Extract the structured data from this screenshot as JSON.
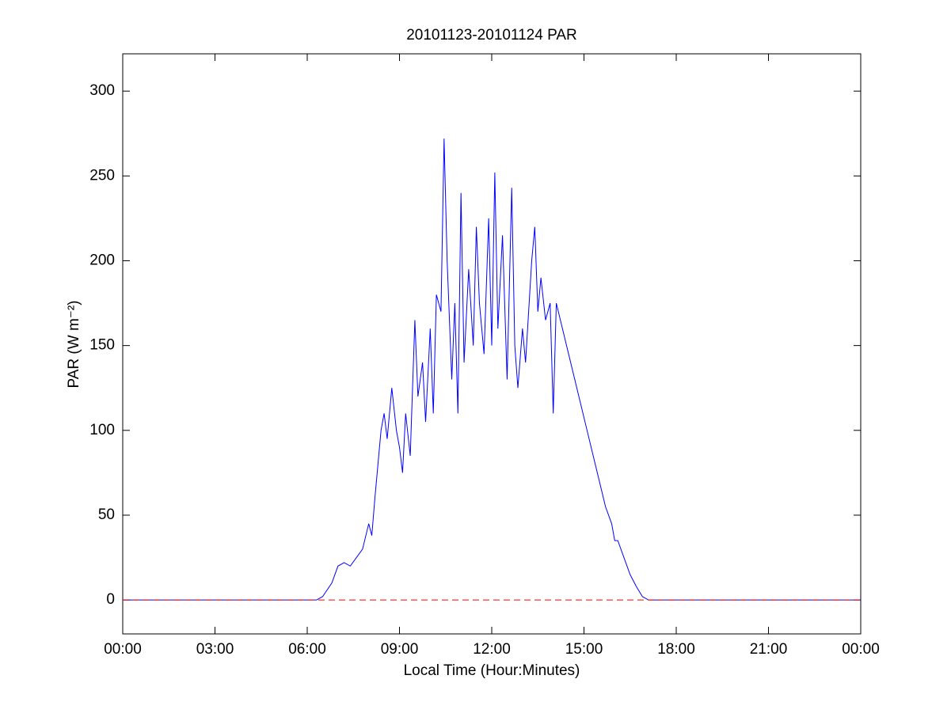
{
  "chart_data": {
    "type": "line",
    "title": "20101123-20101124 PAR",
    "xlabel": "Local Time (Hour:Minutes)",
    "ylabel": "PAR (W m⁻²)",
    "xlim": [
      0,
      24
    ],
    "ylim": [
      -20,
      322
    ],
    "xticks": [
      {
        "value": 0,
        "label": "00:00"
      },
      {
        "value": 3,
        "label": "03:00"
      },
      {
        "value": 6,
        "label": "06:00"
      },
      {
        "value": 9,
        "label": "09:00"
      },
      {
        "value": 12,
        "label": "12:00"
      },
      {
        "value": 15,
        "label": "15:00"
      },
      {
        "value": 18,
        "label": "18:00"
      },
      {
        "value": 21,
        "label": "21:00"
      },
      {
        "value": 24,
        "label": "00:00"
      }
    ],
    "yticks": [
      0,
      50,
      100,
      150,
      200,
      250,
      300
    ],
    "reference_line": {
      "value": 0,
      "color": "#ff0000",
      "style": "dashed"
    },
    "series": [
      {
        "color": "#0000ff",
        "x": [
          0,
          6.3,
          6.5,
          6.8,
          7.0,
          7.2,
          7.4,
          7.6,
          7.8,
          8.0,
          8.1,
          8.2,
          8.4,
          8.5,
          8.6,
          8.75,
          8.9,
          9.0,
          9.1,
          9.2,
          9.35,
          9.5,
          9.6,
          9.75,
          9.85,
          10.0,
          10.1,
          10.2,
          10.35,
          10.45,
          10.55,
          10.7,
          10.8,
          10.9,
          11.0,
          11.1,
          11.25,
          11.4,
          11.5,
          11.6,
          11.75,
          11.9,
          12.0,
          12.1,
          12.2,
          12.35,
          12.5,
          12.65,
          12.75,
          12.85,
          13.0,
          13.1,
          13.3,
          13.4,
          13.5,
          13.6,
          13.75,
          13.9,
          14.0,
          14.1,
          14.3,
          14.5,
          14.7,
          14.9,
          15.1,
          15.3,
          15.5,
          15.7,
          15.9,
          16.0,
          16.1,
          16.3,
          16.5,
          16.7,
          16.9,
          17.1,
          24
        ],
        "values": [
          0,
          0,
          2,
          10,
          20,
          22,
          20,
          25,
          30,
          45,
          38,
          60,
          100,
          110,
          95,
          125,
          100,
          90,
          75,
          110,
          85,
          165,
          120,
          140,
          105,
          160,
          110,
          180,
          170,
          272,
          200,
          130,
          175,
          110,
          240,
          140,
          195,
          150,
          220,
          175,
          145,
          225,
          150,
          252,
          160,
          215,
          130,
          243,
          150,
          125,
          160,
          140,
          200,
          220,
          170,
          190,
          165,
          175,
          110,
          175,
          160,
          145,
          130,
          115,
          100,
          85,
          70,
          55,
          45,
          35,
          35,
          25,
          15,
          8,
          2,
          0,
          0
        ]
      }
    ]
  }
}
